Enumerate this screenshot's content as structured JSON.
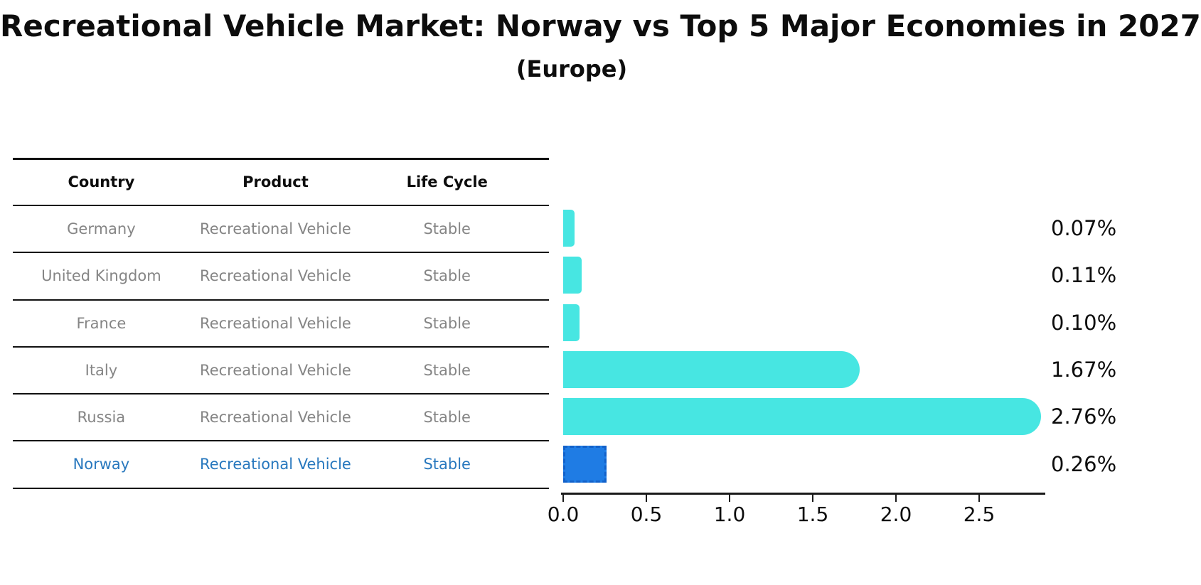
{
  "title": "Recreational Vehicle Market: Norway vs Top 5 Major Economies in 2027",
  "subtitle": "(Europe)",
  "table": {
    "headers": [
      "Country",
      "Product",
      "Life Cycle"
    ],
    "rows": [
      {
        "country": "Germany",
        "product": "Recreational Vehicle",
        "life_cycle": "Stable",
        "highlight": false
      },
      {
        "country": "United Kingdom",
        "product": "Recreational Vehicle",
        "life_cycle": "Stable",
        "highlight": false
      },
      {
        "country": "France",
        "product": "Recreational Vehicle",
        "life_cycle": "Stable",
        "highlight": false
      },
      {
        "country": "Italy",
        "product": "Recreational Vehicle",
        "life_cycle": "Stable",
        "highlight": false
      },
      {
        "country": "Russia",
        "product": "Recreational Vehicle",
        "life_cycle": "Stable",
        "highlight": false
      },
      {
        "country": "Norway",
        "product": "Recreational Vehicle",
        "life_cycle": "Stable",
        "highlight": true
      }
    ]
  },
  "chart_data": {
    "type": "bar",
    "orientation": "horizontal",
    "title": "Recreational Vehicle Market: Norway vs Top 5 Major Economies in 2027",
    "subtitle": "(Europe)",
    "categories": [
      "Germany",
      "United Kingdom",
      "France",
      "Italy",
      "Russia",
      "Norway"
    ],
    "values": [
      0.07,
      0.11,
      0.1,
      1.67,
      2.76,
      0.26
    ],
    "value_labels": [
      "0.07%",
      "0.11%",
      "0.10%",
      "1.67%",
      "2.76%",
      "0.26%"
    ],
    "highlight_index": 5,
    "xticks": [
      0.0,
      0.5,
      1.0,
      1.5,
      2.0,
      2.5
    ],
    "xtick_labels": [
      "0.0",
      "0.5",
      "1.0",
      "1.5",
      "2.0",
      "2.5"
    ],
    "xlim": [
      0,
      2.9
    ],
    "grid": false,
    "legend": false,
    "bar_color": "#47e6e2",
    "highlight_bar_color": "#1f7ce4",
    "highlight_bar_border": "#1261ca",
    "highlight_text_color": "#2878be",
    "table_text_color": "#858585"
  }
}
